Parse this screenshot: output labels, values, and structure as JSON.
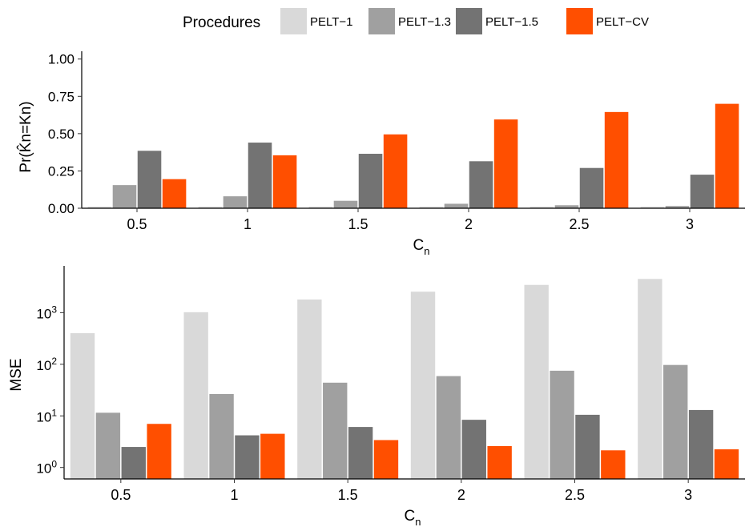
{
  "legend": {
    "title": "Procedures",
    "items": [
      {
        "label": "PELT−1",
        "color": "#d9d9d9"
      },
      {
        "label": "PELT−1.3",
        "color": "#a0a0a0"
      },
      {
        "label": "PELT−1.5",
        "color": "#737373"
      },
      {
        "label": "PELT−CV",
        "color": "#ff4f00"
      }
    ]
  },
  "chart_data": [
    {
      "type": "bar",
      "xlabel": "C",
      "xlabel_sub": "n",
      "ylabel": "Pr(K̂n=Kn)",
      "categories": [
        "0.5",
        "1",
        "1.5",
        "2",
        "2.5",
        "3"
      ],
      "ylim": [
        0,
        1.02
      ],
      "yticks": [
        0,
        0.25,
        0.5,
        0.75,
        1.0
      ],
      "ytick_labels": [
        "0.00",
        "0.25",
        "0.50",
        "0.75",
        "1.00"
      ],
      "series": [
        {
          "name": "PELT−1",
          "values": [
            0.01,
            0.01,
            0.01,
            0.01,
            0.01,
            0.01
          ]
        },
        {
          "name": "PELT−1.3",
          "values": [
            0.155,
            0.08,
            0.05,
            0.03,
            0.02,
            0.015
          ]
        },
        {
          "name": "PELT−1.5",
          "values": [
            0.385,
            0.44,
            0.365,
            0.315,
            0.27,
            0.225
          ]
        },
        {
          "name": "PELT−CV",
          "values": [
            0.195,
            0.355,
            0.495,
            0.595,
            0.645,
            0.7
          ]
        }
      ]
    },
    {
      "type": "bar",
      "log_scale": true,
      "xlabel": "C",
      "xlabel_sub": "n",
      "ylabel": "MSE",
      "categories": [
        "0.5",
        "1",
        "1.5",
        "2",
        "2.5",
        "3"
      ],
      "ylim": [
        0.6,
        6500
      ],
      "yticks": [
        1,
        10,
        100,
        1000
      ],
      "ytick_exponents": [
        "0",
        "1",
        "2",
        "3"
      ],
      "series": [
        {
          "name": "PELT−1",
          "values": [
            400,
            1020,
            1800,
            2550,
            3450,
            4500
          ]
        },
        {
          "name": "PELT−1.3",
          "values": [
            11.5,
            26.5,
            44,
            59,
            75,
            97
          ]
        },
        {
          "name": "PELT−1.5",
          "values": [
            2.5,
            4.2,
            6.1,
            8.4,
            10.5,
            13
          ]
        },
        {
          "name": "PELT−CV",
          "values": [
            7,
            4.5,
            3.4,
            2.6,
            2.15,
            2.25
          ]
        }
      ]
    }
  ]
}
